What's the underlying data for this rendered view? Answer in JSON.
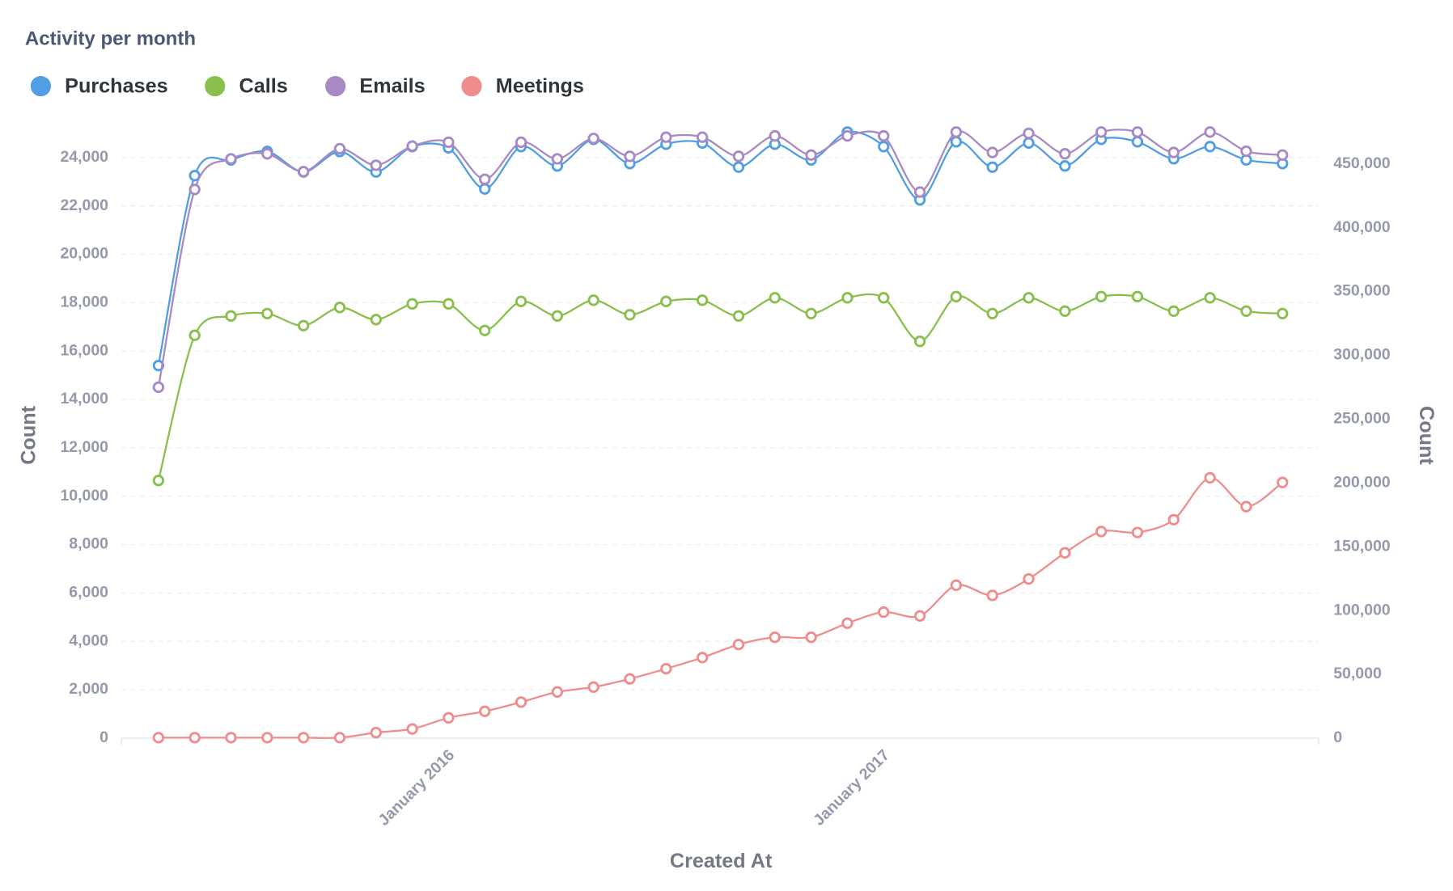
{
  "chart_data": {
    "type": "line",
    "title": "Activity per month",
    "x_label": "Created At",
    "y_label": "Count",
    "y2_label": "Count",
    "categories": [
      null,
      null,
      null,
      null,
      null,
      null,
      null,
      null,
      "January 2016",
      null,
      null,
      null,
      null,
      null,
      null,
      null,
      null,
      null,
      null,
      null,
      "January 2017",
      null,
      null,
      null,
      null,
      null,
      null,
      null,
      null,
      null,
      null,
      null
    ],
    "series": [
      {
        "name": "Purchases",
        "color": "#509ee3",
        "axis": "y",
        "values": [
          15400,
          23250,
          23900,
          24250,
          23400,
          24250,
          23400,
          24450,
          24400,
          22700,
          24450,
          23650,
          24750,
          23750,
          24550,
          24600,
          23600,
          24550,
          23900,
          25050,
          24450,
          22250,
          24650,
          23600,
          24600,
          23650,
          24750,
          24650,
          23950,
          24450,
          23900,
          23750
        ]
      },
      {
        "name": "Calls",
        "color": "#88bf4d",
        "axis": "y",
        "values": [
          10650,
          16650,
          17450,
          17550,
          17050,
          17800,
          17300,
          17950,
          17950,
          16850,
          18050,
          17450,
          18100,
          17500,
          18050,
          18100,
          17450,
          18200,
          17550,
          18200,
          18200,
          16400,
          18250,
          17550,
          18200,
          17650,
          18250,
          18250,
          17650,
          18200,
          17650,
          17550
        ]
      },
      {
        "name": "Emails",
        "color": "#a989c5",
        "axis": "y2",
        "values": [
          275000,
          430000,
          454000,
          458000,
          444000,
          462000,
          449000,
          464000,
          467000,
          438000,
          467000,
          454000,
          470000,
          456000,
          471000,
          471000,
          456000,
          472000,
          457000,
          472000,
          472000,
          428000,
          475000,
          459000,
          474000,
          458000,
          475000,
          475000,
          459000,
          475000,
          460000,
          457000
        ]
      },
      {
        "name": "Meetings",
        "color": "#ef8c8c",
        "axis": "y",
        "values": [
          20,
          20,
          20,
          20,
          20,
          20,
          230,
          380,
          840,
          1110,
          1490,
          1910,
          2110,
          2450,
          2870,
          3330,
          3870,
          4170,
          4170,
          4750,
          5210,
          5050,
          6320,
          5900,
          6580,
          7660,
          8540,
          8500,
          9030,
          10760,
          9570,
          10570
        ]
      }
    ],
    "ylim": [
      0,
      26000
    ],
    "yticks": [
      0,
      {
        "value": 2000,
        "label": "2,000"
      },
      {
        "value": 4000,
        "label": "4,000"
      },
      {
        "value": 6000,
        "label": "6,000"
      },
      {
        "value": 8000,
        "label": "8,000"
      },
      {
        "value": 10000,
        "label": "10,000"
      },
      {
        "value": 12000,
        "label": "12,000"
      },
      {
        "value": 14000,
        "label": "14,000"
      },
      {
        "value": 16000,
        "label": "16,000"
      },
      {
        "value": 18000,
        "label": "18,000"
      },
      {
        "value": 20000,
        "label": "20,000"
      },
      {
        "value": 22000,
        "label": "22,000"
      },
      {
        "value": 24000,
        "label": "24,000"
      }
    ],
    "y2lim": [
      0,
      493000
    ],
    "y2ticks": [
      0,
      {
        "value": 50000,
        "label": "50,000"
      },
      {
        "value": 100000,
        "label": "100,000"
      },
      {
        "value": 150000,
        "label": "150,000"
      },
      {
        "value": 200000,
        "label": "200,000"
      },
      {
        "value": 250000,
        "label": "250,000"
      },
      {
        "value": 300000,
        "label": "300,000"
      },
      {
        "value": 350000,
        "label": "350,000"
      },
      {
        "value": 400000,
        "label": "400,000"
      },
      {
        "value": 450000,
        "label": "450,000"
      }
    ],
    "grid": true,
    "legend": "top-left"
  }
}
